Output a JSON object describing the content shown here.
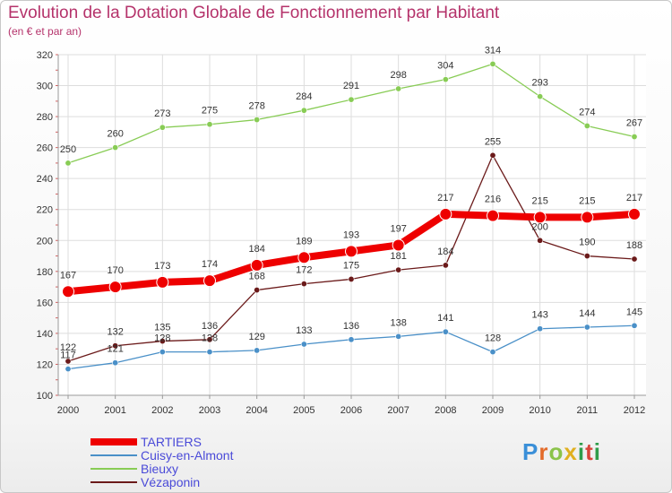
{
  "header": {
    "title": "Evolution de la Dotation Globale de Fonctionnement par Habitant",
    "subtitle": "(en € et par an)"
  },
  "logo": {
    "text": "Proxiti"
  },
  "chart_data": {
    "type": "line",
    "title": "Evolution de la Dotation Globale de Fonctionnement par Habitant",
    "subtitle": "(en € et par an)",
    "xlabel": "",
    "ylabel": "",
    "x": [
      "2000",
      "2001",
      "2002",
      "2003",
      "2004",
      "2005",
      "2006",
      "2007",
      "2008",
      "2009",
      "2010",
      "2011",
      "2012"
    ],
    "ylim": [
      100,
      320
    ],
    "yticks": [
      "100",
      "120",
      "140",
      "160",
      "180",
      "200",
      "220",
      "240",
      "260",
      "280",
      "300",
      "320"
    ],
    "grid": true,
    "legend_position": "bottom-left",
    "series": [
      {
        "name": "TARTIERS",
        "color": "#ee0000",
        "values": [
          167,
          170,
          173,
          174,
          184,
          189,
          193,
          197,
          217,
          216,
          215,
          215,
          217
        ]
      },
      {
        "name": "Cuisy-en-Almont",
        "color": "#4a90c8",
        "values": [
          117,
          121,
          128,
          128,
          129,
          133,
          136,
          138,
          141,
          128,
          143,
          144,
          145
        ]
      },
      {
        "name": "Bieuxy",
        "color": "#88cc55",
        "values": [
          250,
          260,
          273,
          275,
          278,
          284,
          291,
          298,
          304,
          314,
          293,
          274,
          267
        ]
      },
      {
        "name": "Vézaponin",
        "color": "#6b1a1a",
        "values": [
          122,
          132,
          135,
          136,
          168,
          172,
          175,
          181,
          184,
          255,
          200,
          190,
          188
        ]
      }
    ]
  }
}
